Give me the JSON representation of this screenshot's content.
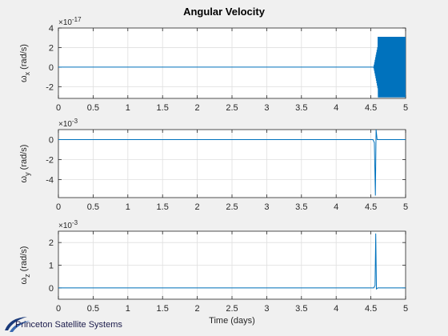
{
  "title": "Angular Velocity",
  "footer_logo_text": "Princeton Satellite Systems",
  "colors": {
    "line": "#0072bd",
    "axes_bg": "#ffffff",
    "figure_bg": "#f0f0f0",
    "grid": "#dfdfdf",
    "axis": "#262626"
  },
  "chart_data": [
    {
      "type": "line",
      "ylabel": {
        "symbol": "ω",
        "subscript": "x",
        "unit": " (rad/s)"
      },
      "xlabel": "",
      "exponent": "×10",
      "exponent_power": "-17",
      "xlim": [
        0,
        5
      ],
      "ylim": [
        -3.2,
        4
      ],
      "xticks": [
        "0",
        "0.5",
        "1",
        "1.5",
        "2",
        "2.5",
        "3",
        "3.5",
        "4",
        "4.5",
        "5"
      ],
      "yticks": [
        {
          "v": -2,
          "t": "-2"
        },
        {
          "v": 0,
          "t": "0"
        },
        {
          "v": 2,
          "t": "2"
        },
        {
          "v": 4,
          "t": "4"
        }
      ],
      "grid": true,
      "series_description": "flat at 0 until ~4.55 days, then oscillates between approx -3.1 and 3.1 (×1e-17) until 5 days",
      "x": [
        0,
        4.54,
        4.56,
        4.58,
        4.6,
        4.62,
        5.0
      ],
      "y": [
        0,
        0,
        1.2,
        -2.0,
        3.1,
        -3.1,
        0
      ]
    },
    {
      "type": "line",
      "ylabel": {
        "symbol": "ω",
        "subscript": "y",
        "unit": " (rad/s)"
      },
      "xlabel": "",
      "exponent": "×10",
      "exponent_power": "-3",
      "xlim": [
        0,
        5
      ],
      "ylim": [
        -5.8,
        1.0
      ],
      "xticks": [
        "0",
        "0.5",
        "1",
        "1.5",
        "2",
        "2.5",
        "3",
        "3.5",
        "4",
        "4.5",
        "5"
      ],
      "yticks": [
        {
          "v": -4,
          "t": "-4"
        },
        {
          "v": -2,
          "t": "-2"
        },
        {
          "v": 0,
          "t": "0"
        }
      ],
      "grid": true,
      "x": [
        0,
        4.53,
        4.55,
        4.565,
        4.575,
        4.59,
        5.0
      ],
      "y": [
        0,
        0,
        -0.3,
        -5.6,
        1.0,
        0,
        0
      ]
    },
    {
      "type": "line",
      "ylabel": {
        "symbol": "ω",
        "subscript": "z",
        "unit": " (rad/s)"
      },
      "xlabel": "Time (days)",
      "exponent": "×10",
      "exponent_power": "-3",
      "xlim": [
        0,
        5
      ],
      "ylim": [
        -0.5,
        2.5
      ],
      "xticks": [
        "0",
        "0.5",
        "1",
        "1.5",
        "2",
        "2.5",
        "3",
        "3.5",
        "4",
        "4.5",
        "5"
      ],
      "yticks": [
        {
          "v": 0,
          "t": "0"
        },
        {
          "v": 1,
          "t": "1"
        },
        {
          "v": 2,
          "t": "2"
        }
      ],
      "grid": true,
      "x": [
        0,
        4.54,
        4.56,
        4.57,
        4.58,
        4.6,
        5.0
      ],
      "y": [
        0,
        0,
        0.1,
        2.4,
        -0.05,
        0,
        0
      ]
    }
  ]
}
